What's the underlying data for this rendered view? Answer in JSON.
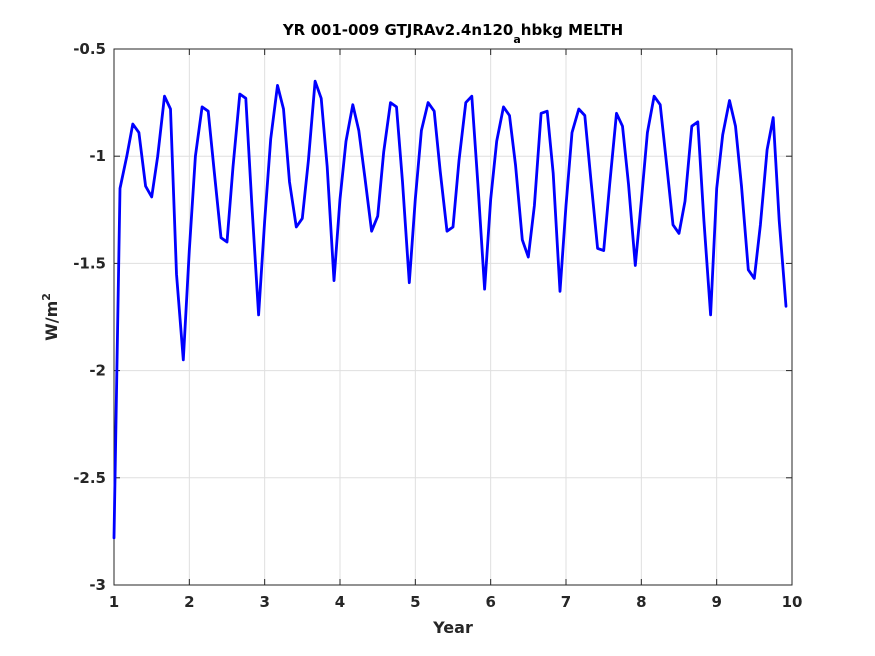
{
  "chart_data": {
    "type": "line",
    "title_main": "YR 001-009 GTJRAv2.4n120",
    "title_subscript": "a",
    "title_rest": "hbkg MELTH",
    "xlabel": "Year",
    "ylabel_base": "W/m",
    "ylabel_superscript": "2",
    "xlim": [
      1,
      10
    ],
    "ylim": [
      -3,
      -0.5
    ],
    "xticks": [
      1,
      2,
      3,
      4,
      5,
      6,
      7,
      8,
      9,
      10
    ],
    "yticks": [
      -3,
      -2.5,
      -2,
      -1.5,
      -1,
      -0.5
    ],
    "grid": true,
    "line_color": "#0000ff",
    "series": [
      {
        "x": [
          1.0,
          1.08,
          1.17,
          1.25,
          1.33,
          1.42,
          1.5,
          1.58,
          1.67,
          1.75,
          1.83,
          1.92,
          2.0,
          2.08,
          2.17,
          2.25,
          2.33,
          2.42,
          2.5,
          2.58,
          2.67,
          2.75,
          2.83,
          2.92,
          3.0,
          3.08,
          3.17,
          3.25,
          3.33,
          3.42,
          3.5,
          3.58,
          3.67,
          3.75,
          3.83,
          3.92,
          4.0,
          4.08,
          4.17,
          4.25,
          4.33,
          4.42,
          4.5,
          4.58,
          4.67,
          4.75,
          4.83,
          4.92,
          5.0,
          5.08,
          5.17,
          5.25,
          5.33,
          5.42,
          5.5,
          5.58,
          5.67,
          5.75,
          5.83,
          5.92,
          6.0,
          6.08,
          6.17,
          6.25,
          6.33,
          6.42,
          6.5,
          6.58,
          6.67,
          6.75,
          6.83,
          6.92,
          7.0,
          7.08,
          7.17,
          7.25,
          7.33,
          7.42,
          7.5,
          7.58,
          7.67,
          7.75,
          7.83,
          7.92,
          8.0,
          8.08,
          8.17,
          8.25,
          8.33,
          8.42,
          8.5,
          8.58,
          8.67,
          8.75,
          8.83,
          8.92,
          9.0,
          9.08,
          9.17,
          9.25,
          9.33,
          9.42,
          9.5,
          9.58,
          9.67,
          9.75,
          9.83,
          9.92
        ],
        "y": [
          -2.78,
          -1.15,
          -1.0,
          -0.85,
          -0.89,
          -1.14,
          -1.19,
          -1.0,
          -0.72,
          -0.78,
          -1.55,
          -1.95,
          -1.44,
          -1.0,
          -0.77,
          -0.79,
          -1.07,
          -1.38,
          -1.4,
          -1.05,
          -0.71,
          -0.73,
          -1.23,
          -1.74,
          -1.3,
          -0.92,
          -0.67,
          -0.78,
          -1.12,
          -1.33,
          -1.29,
          -1.02,
          -0.65,
          -0.73,
          -1.05,
          -1.58,
          -1.2,
          -0.93,
          -0.76,
          -0.88,
          -1.1,
          -1.35,
          -1.28,
          -0.98,
          -0.75,
          -0.77,
          -1.12,
          -1.59,
          -1.2,
          -0.88,
          -0.75,
          -0.79,
          -1.07,
          -1.35,
          -1.33,
          -1.02,
          -0.75,
          -0.72,
          -1.13,
          -1.62,
          -1.2,
          -0.93,
          -0.77,
          -0.81,
          -1.04,
          -1.39,
          -1.47,
          -1.23,
          -0.8,
          -0.79,
          -1.08,
          -1.63,
          -1.23,
          -0.89,
          -0.78,
          -0.81,
          -1.11,
          -1.43,
          -1.44,
          -1.13,
          -0.8,
          -0.86,
          -1.13,
          -1.51,
          -1.21,
          -0.89,
          -0.72,
          -0.76,
          -1.02,
          -1.32,
          -1.36,
          -1.21,
          -0.86,
          -0.84,
          -1.3,
          -1.74,
          -1.15,
          -0.9,
          -0.74,
          -0.86,
          -1.14,
          -1.53,
          -1.57,
          -1.32,
          -0.97,
          -0.82,
          -1.3,
          -1.7
        ]
      }
    ]
  }
}
